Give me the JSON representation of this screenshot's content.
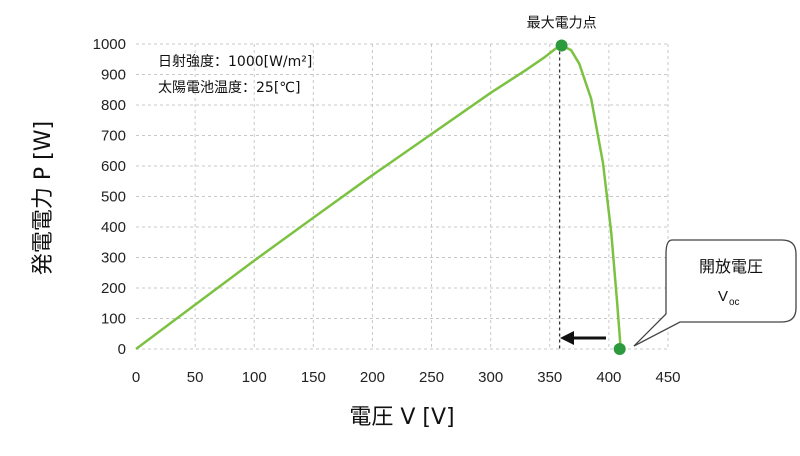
{
  "chart_data": {
    "type": "line",
    "xlabel": "電圧 V [V]",
    "ylabel": "発電電力 P [W]",
    "xlim": [
      0,
      450
    ],
    "ylim": [
      0,
      1000
    ],
    "x_ticks": [
      0,
      50,
      100,
      150,
      200,
      250,
      300,
      350,
      400,
      450
    ],
    "y_ticks": [
      0,
      100,
      200,
      300,
      400,
      500,
      600,
      700,
      800,
      900,
      1000
    ],
    "grid": true,
    "line_color": "#7cc242",
    "marker_color": "#2e9a3e",
    "series": [
      {
        "x": [
          0,
          50,
          100,
          150,
          200,
          250,
          300,
          330,
          345,
          355,
          360,
          368,
          375,
          385,
          395,
          402,
          407,
          410
        ],
        "y": [
          0,
          145,
          290,
          430,
          570,
          705,
          840,
          915,
          955,
          985,
          995,
          980,
          935,
          820,
          610,
          380,
          150,
          0
        ]
      }
    ],
    "conditions": [
      "日射強度：1000[W/m²]",
      "太陽電池温度：25[℃]"
    ],
    "mpp": {
      "label": "最大電力点",
      "x": 360,
      "y": 995
    },
    "voc": {
      "label": "開放電圧",
      "symbol": "V",
      "subscript": "oc",
      "x": 410,
      "y": 0
    }
  }
}
